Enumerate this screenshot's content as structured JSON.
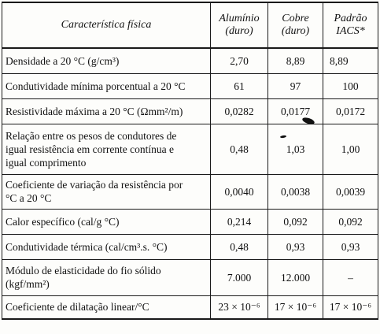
{
  "table": {
    "header": {
      "property": "Característica física",
      "aluminio": [
        "Alumínio",
        "(duro)"
      ],
      "cobre": [
        "Cobre",
        "(duro)"
      ],
      "padrao": [
        "Padrão",
        "IACS*"
      ]
    },
    "rows": [
      {
        "property": [
          "Densidade a 20 °C (g/cm³)"
        ],
        "aluminio": "2,70",
        "cobre": "8,89",
        "padrao": "8,89"
      },
      {
        "property": [
          "Condutividade mínima porcentual a 20 °C"
        ],
        "aluminio": "61",
        "cobre": "97",
        "padrao": "100"
      },
      {
        "property": [
          "Resistividade máxima a 20 °C (Ωmm²/m)"
        ],
        "aluminio": "0,0282",
        "cobre": "0,0177",
        "padrao": "0,0172"
      },
      {
        "property": [
          "Relação entre os pesos de condutores de",
          "igual resistência em corrente contínua e",
          "igual comprimento"
        ],
        "aluminio": "0,48",
        "cobre": "1,03",
        "padrao": "1,00"
      },
      {
        "property": [
          "Coeficiente de variação da resistência por",
          "°C a 20 °C"
        ],
        "aluminio": "0,0040",
        "cobre": "0,0038",
        "padrao": "0,0039"
      },
      {
        "property": [
          "Calor específico (cal/g °C)"
        ],
        "aluminio": "0,214",
        "cobre": "0,092",
        "padrao": "0,092"
      },
      {
        "property": [
          "Condutividade térmica (cal/cm³.s. °C)"
        ],
        "aluminio": "0,48",
        "cobre": "0,93",
        "padrao": "0,93"
      },
      {
        "property": [
          "Módulo de elasticidade do fio sólido",
          "(kgf/mm²)"
        ],
        "aluminio": "7.000",
        "cobre": "12.000",
        "padrao": "–"
      },
      {
        "property": [
          "Coeficiente de dilatação linear/°C"
        ],
        "aluminio": "23 × 10⁻⁶",
        "cobre": "17 × 10⁻⁶",
        "padrao": "17 × 10⁻⁶"
      }
    ]
  }
}
